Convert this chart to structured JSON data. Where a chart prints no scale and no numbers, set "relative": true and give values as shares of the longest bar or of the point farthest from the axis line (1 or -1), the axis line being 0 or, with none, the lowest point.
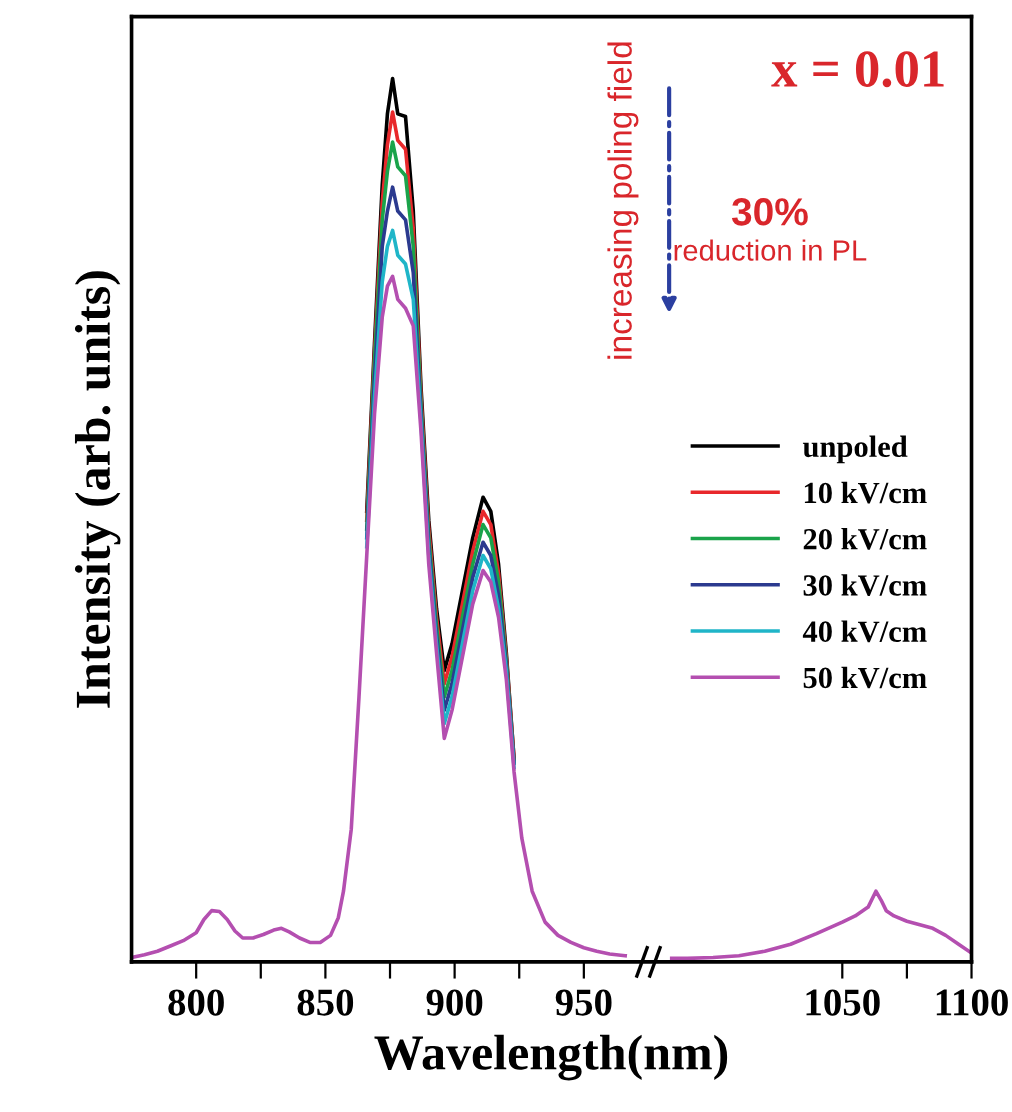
{
  "chart_data": {
    "type": "line",
    "relative": true,
    "xlabel": "Wavelength(nm)",
    "ylabel": "Intensity (arb. units)",
    "xlim": [
      775,
      1100
    ],
    "xticks": [
      800,
      {
        "value": 825,
        "label": null
      },
      850,
      {
        "value": 875,
        "label": null
      },
      900,
      {
        "value": 925,
        "label": null
      },
      950,
      1050,
      {
        "value": 1075,
        "label": null
      },
      1100
    ],
    "legend": "center right",
    "line_style": "solid",
    "marker": "none",
    "grid": false,
    "annotations": [
      "x = 0.01",
      "increasing poling field",
      "30%",
      "reduction in PL"
    ],
    "x": [
      775,
      780,
      785,
      790,
      795,
      800,
      803,
      806,
      809,
      812,
      815,
      818,
      822,
      826,
      830,
      833,
      836,
      840,
      844,
      848,
      852,
      855,
      857,
      860,
      863,
      866,
      869,
      872,
      874,
      876,
      878,
      881,
      884,
      887,
      890,
      893,
      896,
      899,
      903,
      907,
      911,
      914,
      917,
      920,
      923,
      926,
      930,
      935,
      940,
      945,
      950,
      955,
      960,
      966,
      975,
      984,
      990,
      1000,
      1010,
      1020,
      1030,
      1040,
      1050,
      1055,
      1060,
      1063,
      1065,
      1067,
      1070,
      1075,
      1080,
      1085,
      1090,
      1095,
      1100
    ],
    "series": [
      {
        "name": "unpoled",
        "color": "#000000",
        "values": [
          null,
          null,
          null,
          null,
          null,
          null,
          null,
          null,
          null,
          null,
          null,
          null,
          null,
          null,
          null,
          null,
          null,
          null,
          null,
          null,
          null,
          null,
          null,
          null,
          null,
          0.51,
          0.7,
          0.88,
          0.96,
          1.0,
          0.96,
          0.957,
          0.85,
          0.65,
          0.5,
          0.4,
          0.33,
          0.36,
          0.42,
          0.48,
          0.526,
          0.51,
          0.45,
          0.35,
          0.23,
          null,
          null,
          null,
          null,
          null,
          null,
          null,
          null,
          null,
          null,
          null,
          null,
          null,
          null,
          null,
          null,
          null,
          null,
          null,
          null,
          null,
          null,
          null,
          null,
          null,
          null,
          null,
          null,
          null,
          null
        ]
      },
      {
        "name": "10 kV/cm",
        "color": "#e8282b",
        "values": [
          null,
          null,
          null,
          null,
          null,
          null,
          null,
          null,
          null,
          null,
          null,
          null,
          null,
          null,
          null,
          null,
          null,
          null,
          null,
          null,
          null,
          null,
          null,
          null,
          null,
          0.5,
          0.69,
          0.86,
          0.925,
          0.962,
          0.93,
          0.92,
          0.83,
          0.64,
          0.49,
          0.39,
          0.315,
          0.345,
          0.405,
          0.465,
          0.51,
          0.495,
          0.44,
          0.345,
          0.23,
          null,
          null,
          null,
          null,
          null,
          null,
          null,
          null,
          null,
          null,
          null,
          null,
          null,
          null,
          null,
          null,
          null,
          null,
          null,
          null,
          null,
          null,
          null,
          null,
          null,
          null,
          null,
          null,
          null,
          null
        ]
      },
      {
        "name": "20 kV/cm",
        "color": "#1aa34a",
        "values": [
          null,
          null,
          null,
          null,
          null,
          null,
          null,
          null,
          null,
          null,
          null,
          null,
          null,
          null,
          null,
          null,
          null,
          null,
          null,
          null,
          null,
          null,
          null,
          null,
          null,
          0.49,
          0.68,
          0.84,
          0.895,
          0.928,
          0.9,
          0.89,
          0.81,
          0.63,
          0.48,
          0.38,
          0.3,
          0.33,
          0.39,
          0.45,
          0.495,
          0.48,
          0.43,
          0.34,
          0.225,
          null,
          null,
          null,
          null,
          null,
          null,
          null,
          null,
          null,
          null,
          null,
          null,
          null,
          null,
          null,
          null,
          null,
          null,
          null,
          null,
          null,
          null,
          null,
          null,
          null,
          null,
          null,
          null,
          null,
          null
        ]
      },
      {
        "name": "30 kV/cm",
        "color": "#2b3a8f",
        "values": [
          null,
          null,
          null,
          null,
          null,
          null,
          null,
          null,
          null,
          null,
          null,
          null,
          null,
          null,
          null,
          null,
          null,
          null,
          null,
          null,
          null,
          null,
          null,
          null,
          null,
          0.48,
          0.66,
          0.81,
          0.85,
          0.877,
          0.85,
          0.84,
          0.78,
          0.62,
          0.47,
          0.37,
          0.285,
          0.315,
          0.375,
          0.435,
          0.475,
          0.46,
          0.415,
          0.335,
          0.225,
          null,
          null,
          null,
          null,
          null,
          null,
          null,
          null,
          null,
          null,
          null,
          null,
          null,
          null,
          null,
          null,
          null,
          null,
          null,
          null,
          null,
          null,
          null,
          null,
          null,
          null,
          null,
          null,
          null,
          null
        ]
      },
      {
        "name": "40 kV/cm",
        "color": "#1fb5c8",
        "values": [
          null,
          null,
          null,
          null,
          null,
          null,
          null,
          null,
          null,
          null,
          null,
          null,
          null,
          null,
          null,
          null,
          null,
          null,
          null,
          null,
          null,
          null,
          null,
          null,
          null,
          0.47,
          0.64,
          0.77,
          0.81,
          0.828,
          0.8,
          0.79,
          0.75,
          0.61,
          0.46,
          0.36,
          0.27,
          0.3,
          0.36,
          0.42,
          0.46,
          0.445,
          0.4,
          0.33,
          0.22,
          null,
          null,
          null,
          null,
          null,
          null,
          null,
          null,
          null,
          null,
          null,
          null,
          null,
          null,
          null,
          null,
          null,
          null,
          null,
          null,
          null,
          null,
          null,
          null,
          null,
          null,
          null,
          null,
          null,
          null
        ]
      },
      {
        "name": "50 kV/cm",
        "color": "#b44fb0",
        "values": [
          0.005,
          0.008,
          0.012,
          0.018,
          0.024,
          0.033,
          0.048,
          0.058,
          0.057,
          0.048,
          0.035,
          0.027,
          0.027,
          0.031,
          0.036,
          0.038,
          0.034,
          0.027,
          0.022,
          0.022,
          0.03,
          0.05,
          0.08,
          0.15,
          0.3,
          0.46,
          0.62,
          0.73,
          0.765,
          0.776,
          0.75,
          0.74,
          0.72,
          0.6,
          0.45,
          0.35,
          0.253,
          0.285,
          0.345,
          0.405,
          0.443,
          0.43,
          0.39,
          0.32,
          0.215,
          0.14,
          0.08,
          0.045,
          0.03,
          0.022,
          0.016,
          0.012,
          0.009,
          0.007,
          null,
          0.004,
          0.004,
          0.005,
          0.007,
          0.012,
          0.02,
          0.032,
          0.045,
          0.052,
          0.062,
          0.08,
          0.07,
          0.058,
          0.052,
          0.046,
          0.042,
          0.038,
          0.03,
          0.02,
          0.01
        ]
      }
    ]
  }
}
